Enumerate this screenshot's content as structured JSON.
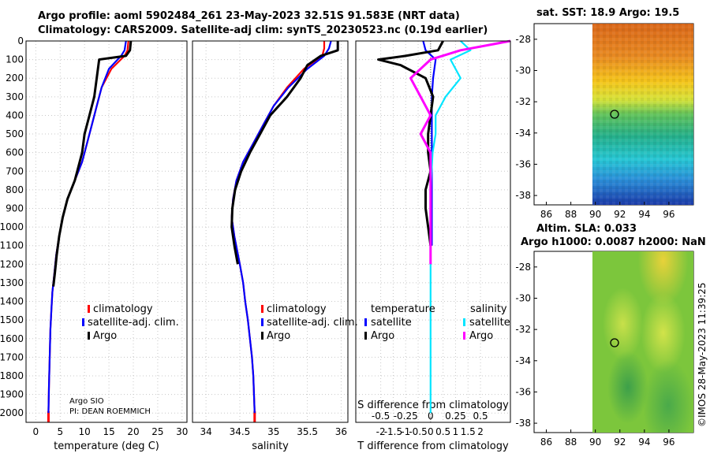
{
  "header": {
    "title1": "Argo profile: aoml 5902484_261 23-May-2023 32.51S 91.583E (NRT data)",
    "title2": "Climatology: CARS2009. Satellite-adj clim: synTS_20230523.nc (0.19d earlier)"
  },
  "maps": {
    "sst_title": "sat. SST: 18.9 Argo: 19.5",
    "sla_title1": "Altim. SLA: 0.033",
    "sla_title2": "Argo h1000: 0.0087 h2000: NaN",
    "lat_ticks": [
      "-28",
      "-30",
      "-32",
      "-34",
      "-36",
      "-38"
    ],
    "lon_ticks": [
      "86",
      "88",
      "90",
      "92",
      "94",
      "96"
    ]
  },
  "footer": {
    "institution": "Argo SIO",
    "pi": "PI: DEAN ROEMMICH",
    "stamp": "©IMOS 28-May-2023 11:39:25"
  },
  "legend": {
    "climatology": "climatology",
    "satellite_adj": "satellite-adj. clim.",
    "argo": "Argo",
    "temperature": "temperature",
    "salinity": "salinity",
    "satellite": "satellite"
  },
  "colors": {
    "climatology": "#ff0000",
    "satellite": "#0000ff",
    "argo": "#000000",
    "s_satellite": "#00e5ff",
    "s_argo": "#ff00ff"
  },
  "chart_data": [
    {
      "type": "line",
      "xlabel": "temperature (deg C)",
      "ylabel": "",
      "xlim": [
        -2,
        31
      ],
      "ylim": [
        0,
        2050
      ],
      "xticks": [
        "0",
        "5",
        "10",
        "15",
        "20",
        "25",
        "30"
      ],
      "xtick_values": [
        0,
        5,
        10,
        15,
        20,
        25,
        30
      ],
      "yticks": [
        "0",
        "100",
        "200",
        "300",
        "400",
        "500",
        "600",
        "700",
        "800",
        "900",
        "1000",
        "1100",
        "1200",
        "1300",
        "1400",
        "1500",
        "1600",
        "1700",
        "1800",
        "1900",
        "2000"
      ],
      "series": [
        {
          "name": "climatology",
          "x": [
            19,
            18.8,
            18.2,
            15.5,
            13.5,
            12.5,
            11.5,
            10.5,
            9.5,
            8,
            6.5,
            5.5,
            4.8,
            4.2,
            3.8,
            3.4,
            3.2,
            3.0,
            2.9,
            2.8,
            2.7,
            2.6
          ],
          "y": [
            0,
            50,
            80,
            150,
            250,
            350,
            450,
            550,
            650,
            750,
            850,
            950,
            1050,
            1150,
            1250,
            1350,
            1450,
            1550,
            1650,
            1750,
            1850,
            2000
          ]
        },
        {
          "name": "satellite-adj. clim.",
          "x": [
            18.5,
            18.2,
            17.5,
            15,
            13.5,
            12.5,
            11.5,
            10.5,
            9.5,
            8,
            6.5,
            5.5,
            4.8,
            4.2,
            3.8,
            3.4,
            3.2,
            3.0,
            2.9,
            2.8,
            2.7,
            2.6
          ],
          "y": [
            0,
            50,
            80,
            150,
            250,
            350,
            450,
            550,
            650,
            750,
            850,
            950,
            1050,
            1150,
            1250,
            1350,
            1450,
            1550,
            1650,
            1750,
            1850,
            2000
          ]
        },
        {
          "name": "Argo",
          "x": [
            19.5,
            19.3,
            18.5,
            13,
            12.5,
            12,
            11,
            10,
            9.5,
            8,
            6.5,
            5.5,
            4.8,
            4.3,
            3.9,
            3.6
          ],
          "y": [
            0,
            50,
            80,
            100,
            200,
            300,
            400,
            500,
            600,
            750,
            850,
            950,
            1050,
            1150,
            1250,
            1320
          ]
        }
      ]
    },
    {
      "type": "line",
      "xlabel": "salinity",
      "ylabel": "",
      "xlim": [
        33.8,
        36.1
      ],
      "ylim": [
        0,
        2050
      ],
      "xticks": [
        "34",
        "34.5",
        "35",
        "35.5",
        "36"
      ],
      "xtick_values": [
        34,
        34.5,
        35,
        35.5,
        36
      ],
      "series": [
        {
          "name": "climatology",
          "x": [
            35.75,
            35.75,
            35.72,
            35.45,
            35.2,
            35.0,
            34.85,
            34.7,
            34.55,
            34.45,
            34.4,
            34.38,
            34.42,
            34.5,
            34.55,
            34.58,
            34.62,
            34.65,
            34.68,
            34.7,
            34.72
          ],
          "y": [
            0,
            40,
            80,
            150,
            250,
            350,
            450,
            550,
            650,
            750,
            850,
            950,
            1050,
            1200,
            1300,
            1400,
            1500,
            1600,
            1700,
            1800,
            2000
          ]
        },
        {
          "name": "satellite-adj. clim.",
          "x": [
            35.85,
            35.82,
            35.75,
            35.5,
            35.22,
            35.0,
            34.85,
            34.7,
            34.55,
            34.45,
            34.4,
            34.38,
            34.42,
            34.5,
            34.55,
            34.58,
            34.62,
            34.65,
            34.68,
            34.7,
            34.72
          ],
          "y": [
            0,
            40,
            80,
            150,
            250,
            350,
            450,
            550,
            650,
            750,
            850,
            950,
            1050,
            1200,
            1300,
            1400,
            1500,
            1600,
            1700,
            1800,
            2000
          ]
        },
        {
          "name": "Argo",
          "x": [
            35.95,
            35.95,
            35.7,
            35.5,
            35.4,
            35.2,
            34.95,
            34.8,
            34.65,
            34.52,
            34.43,
            34.39,
            34.38,
            34.42,
            34.47
          ],
          "y": [
            0,
            50,
            80,
            130,
            200,
            300,
            400,
            500,
            600,
            700,
            800,
            900,
            1000,
            1100,
            1200
          ]
        }
      ]
    },
    {
      "type": "line",
      "xlabel": "T difference from climatology",
      "ylabel": "S difference from climatology",
      "xlim": [
        -3,
        3.2
      ],
      "ylim": [
        0,
        2050
      ],
      "xticks": [
        "-2",
        "-1.5",
        "-1",
        "-0.5",
        "0",
        "0.5",
        "1",
        "1.5",
        "2"
      ],
      "xtick_values": [
        -2,
        -1.5,
        -1,
        -0.5,
        0,
        0.5,
        1,
        1.5,
        2
      ],
      "s_ticks": [
        "-0.5",
        "-0.25",
        "0",
        "0.25",
        "0.5"
      ],
      "s_tick_values": [
        -0.5,
        -0.25,
        0,
        0.25,
        0.5
      ],
      "series": [
        {
          "name": "temperature satellite",
          "x": [
            -0.3,
            -0.2,
            0.2,
            0.1,
            0.05,
            0.05,
            0.05,
            0.05,
            0.05,
            0.05,
            0.05,
            0.05,
            0.05
          ],
          "y": [
            0,
            50,
            100,
            200,
            300,
            400,
            500,
            600,
            700,
            800,
            900,
            1000,
            1100
          ]
        },
        {
          "name": "temperature Argo",
          "x": [
            0.5,
            0.3,
            -1.0,
            -2.1,
            -1.2,
            -0.2,
            0.1,
            0.0,
            -0.1,
            -0.1,
            0.0,
            -0.2,
            -0.2,
            -0.1,
            0.0
          ],
          "y": [
            0,
            50,
            80,
            100,
            130,
            200,
            300,
            400,
            500,
            600,
            700,
            800,
            900,
            1000,
            1100
          ]
        },
        {
          "name": "salinity satellite",
          "x": [
            0.3,
            0.4,
            0.2,
            0.3,
            0.15,
            0.05,
            0.05,
            0.02,
            0.0,
            0.0,
            0.0,
            0.0,
            0.0
          ],
          "y": [
            0,
            50,
            100,
            200,
            300,
            400,
            500,
            600,
            800,
            1000,
            1200,
            1600,
            2000
          ]
        },
        {
          "name": "salinity Argo",
          "x": [
            0.8,
            0.3,
            0.0,
            -0.2,
            -0.1,
            0.0,
            -0.1,
            0.0,
            0.0,
            0.0,
            0.0
          ],
          "y": [
            0,
            50,
            100,
            200,
            300,
            400,
            500,
            600,
            800,
            1000,
            1200
          ]
        }
      ]
    }
  ]
}
